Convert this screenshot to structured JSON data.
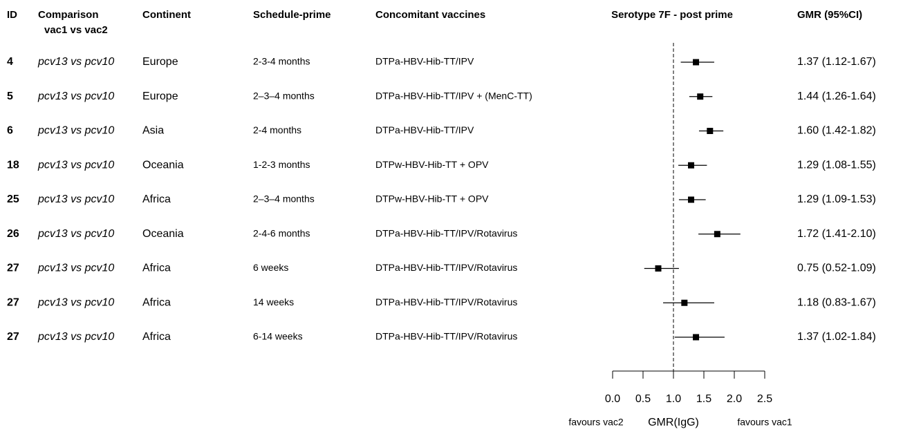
{
  "chart_data": {
    "type": "forest",
    "title": "Serotype 7F - post prime",
    "headers": [
      "ID",
      "Comparison",
      "Continent",
      "Schedule-prime",
      "Concomitant vaccines",
      "GMR (95%CI)"
    ],
    "header_subline": "vac1 vs vac2",
    "ids": [
      "4",
      "5",
      "6",
      "18",
      "25",
      "26",
      "27",
      "27",
      "27"
    ],
    "comparisons": [
      "pcv13 vs pcv10",
      "pcv13 vs pcv10",
      "pcv13 vs pcv10",
      "pcv13 vs pcv10",
      "pcv13 vs pcv10",
      "pcv13 vs pcv10",
      "pcv13 vs pcv10",
      "pcv13 vs pcv10",
      "pcv13 vs pcv10"
    ],
    "continents": [
      "Europe",
      "Europe",
      "Asia",
      "Oceania",
      "Africa",
      "Oceania",
      "Africa",
      "Africa",
      "Africa"
    ],
    "schedules": [
      "2-3-4 months",
      "2–3–4 months",
      "2-4 months",
      "1-2-3 months",
      "2–3–4 months",
      "2-4-6 months",
      "6 weeks",
      "14 weeks",
      "6-14 weeks"
    ],
    "vaccines": [
      "DTPa-HBV-Hib-TT/IPV",
      "DTPa-HBV-Hib-TT/IPV + (MenC-TT)",
      "DTPa-HBV-Hib-TT/IPV",
      "DTPw-HBV-Hib-TT + OPV",
      "DTPw-HBV-Hib-TT + OPV",
      "DTPa-HBV-Hib-TT/IPV/Rotavirus",
      "DTPa-HBV-Hib-TT/IPV/Rotavirus",
      "DTPa-HBV-Hib-TT/IPV/Rotavirus",
      "DTPa-HBV-Hib-TT/IPV/Rotavirus"
    ],
    "values": [
      1.37,
      1.44,
      1.6,
      1.29,
      1.29,
      1.72,
      0.75,
      1.18,
      1.37
    ],
    "lower": [
      1.12,
      1.26,
      1.42,
      1.08,
      1.09,
      1.41,
      0.52,
      0.83,
      1.02
    ],
    "upper": [
      1.67,
      1.64,
      1.82,
      1.55,
      1.53,
      2.1,
      1.09,
      1.67,
      1.84
    ],
    "value_labels": [
      "1.37 (1.12-1.67)",
      "1.44 (1.26-1.64)",
      "1.60 (1.42-1.82)",
      "1.29 (1.08-1.55)",
      "1.29 (1.09-1.53)",
      "1.72 (1.41-2.10)",
      "0.75 (0.52-1.09)",
      "1.18 (0.83-1.67)",
      "1.37 (1.02-1.84)"
    ],
    "xlim": [
      0,
      2.5
    ],
    "xticks": [
      {
        "value": 0,
        "label": "0.0"
      },
      0.5,
      {
        "value": 1,
        "label": "1.0"
      },
      1.5,
      {
        "value": 2,
        "label": "2.0"
      },
      2.5
    ],
    "ref_line": 1,
    "xlabel": "GMR(IgG)",
    "left_note": "favours vac2",
    "right_note": "favours vac1",
    "color": "#000000"
  }
}
